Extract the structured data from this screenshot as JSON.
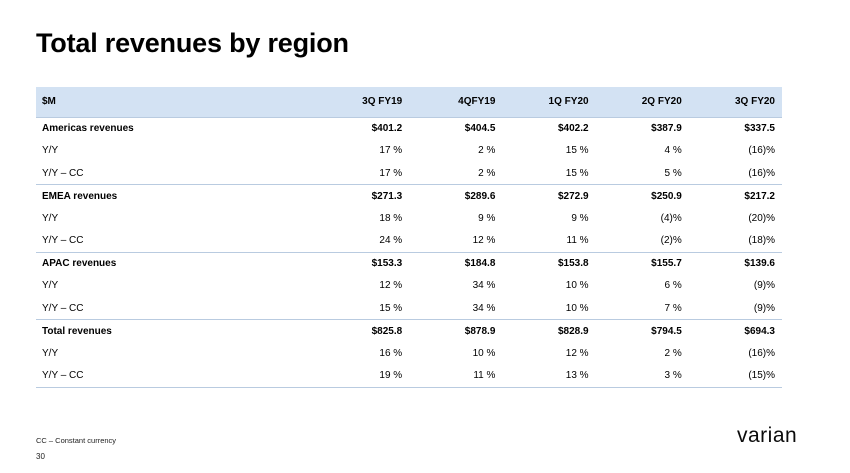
{
  "title": "Total revenues by region",
  "table": {
    "header": [
      "$M",
      "3Q FY19",
      "4QFY19",
      "1Q FY20",
      "2Q FY20",
      "3Q FY20"
    ],
    "rows": [
      {
        "label": "Americas revenues",
        "values": [
          "$401.2",
          "$404.5",
          "$402.2",
          "$387.9",
          "$337.5"
        ],
        "group": true
      },
      {
        "label": "Y/Y",
        "values": [
          "17 %",
          "2 %",
          "15 %",
          "4 %",
          "(16)%"
        ]
      },
      {
        "label": "Y/Y – CC",
        "values": [
          "17 %",
          "2 %",
          "15 %",
          "5 %",
          "(16)%"
        ]
      },
      {
        "label": "EMEA revenues",
        "values": [
          "$271.3",
          "$289.6",
          "$272.9",
          "$250.9",
          "$217.2"
        ],
        "group": true
      },
      {
        "label": "Y/Y",
        "values": [
          "18 %",
          "9 %",
          "9 %",
          "(4)%",
          "(20)%"
        ]
      },
      {
        "label": "Y/Y – CC",
        "values": [
          "24 %",
          "12 %",
          "11 %",
          "(2)%",
          "(18)%"
        ]
      },
      {
        "label": "APAC revenues",
        "values": [
          "$153.3",
          "$184.8",
          "$153.8",
          "$155.7",
          "$139.6"
        ],
        "group": true
      },
      {
        "label": "Y/Y",
        "values": [
          "12 %",
          "34 %",
          "10 %",
          "6 %",
          "(9)%"
        ]
      },
      {
        "label": "Y/Y – CC",
        "values": [
          "15 %",
          "34 %",
          "10 %",
          "7 %",
          "(9)%"
        ]
      },
      {
        "label": "Total revenues",
        "values": [
          "$825.8",
          "$878.9",
          "$828.9",
          "$794.5",
          "$694.3"
        ],
        "group": true
      },
      {
        "label": "Y/Y",
        "values": [
          "16 %",
          "10 %",
          "12 %",
          "2 %",
          "(16)%"
        ]
      },
      {
        "label": "Y/Y – CC",
        "values": [
          "19 %",
          "11 %",
          "13 %",
          "3 %",
          "(15)%"
        ]
      }
    ]
  },
  "footnote": "CC – Constant currency",
  "page_number": "30",
  "logo": {
    "text": "varian",
    "icon": "varian-logo-icon"
  },
  "colors": {
    "header_bg": "#d3e2f3",
    "rule": "#b9cbe0",
    "text": "#000000"
  }
}
